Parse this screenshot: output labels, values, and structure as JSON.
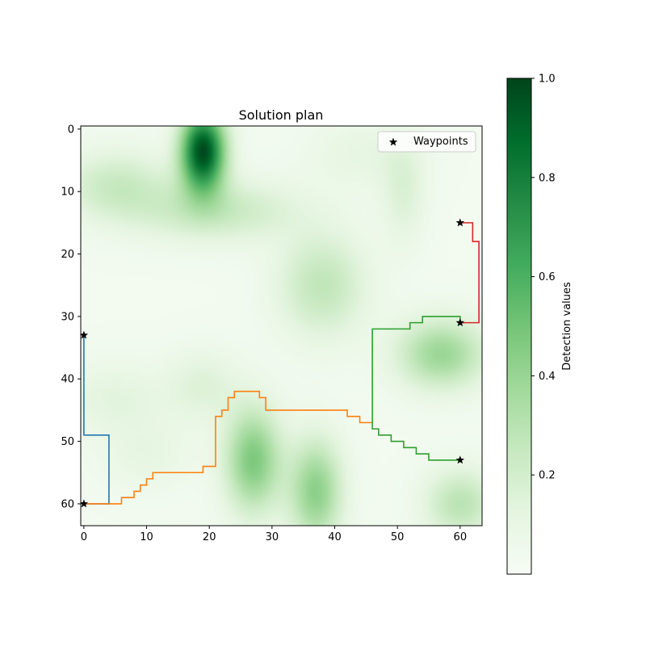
{
  "chart_data": {
    "type": "heatmap",
    "title": "Solution plan",
    "xlabel": "",
    "ylabel": "",
    "xlim": [
      -0.5,
      63.5
    ],
    "ylim": [
      63.5,
      -0.5
    ],
    "x_ticks": [
      0,
      10,
      20,
      30,
      40,
      50,
      60
    ],
    "y_ticks": [
      0,
      10,
      20,
      30,
      40,
      50,
      60
    ],
    "tick_labels_x": [
      "0",
      "10",
      "20",
      "30",
      "40",
      "50",
      "60"
    ],
    "tick_labels_y": [
      "0",
      "10",
      "20",
      "30",
      "40",
      "50",
      "60"
    ],
    "colormap": "Greens",
    "colorbar": {
      "label": "Detection values",
      "range": [
        0,
        1
      ],
      "ticks": [
        0.2,
        0.4,
        0.6,
        0.8,
        1.0
      ],
      "tick_labels": [
        "0.2",
        "0.4",
        "0.6",
        "0.8",
        "1.0"
      ]
    },
    "detection_field_blobs": [
      {
        "x": 19,
        "y": 3.5,
        "sx": 2.5,
        "sy": 4.5,
        "value": 0.95
      },
      {
        "x": 21,
        "y": 13,
        "sx": 9,
        "sy": 3.5,
        "value": 0.22
      },
      {
        "x": 5,
        "y": 9,
        "sx": 6,
        "sy": 4,
        "value": 0.2
      },
      {
        "x": 38,
        "y": 25,
        "sx": 5,
        "sy": 6,
        "value": 0.24
      },
      {
        "x": 57,
        "y": 36,
        "sx": 5,
        "sy": 4,
        "value": 0.36
      },
      {
        "x": 51,
        "y": 10,
        "sx": 2.5,
        "sy": 6,
        "value": 0.13
      },
      {
        "x": 27,
        "y": 53,
        "sx": 3.2,
        "sy": 6,
        "value": 0.44
      },
      {
        "x": 37,
        "y": 58,
        "sx": 3,
        "sy": 6,
        "value": 0.4
      },
      {
        "x": 19,
        "y": 41,
        "sx": 4,
        "sy": 4,
        "value": 0.12
      },
      {
        "x": 5,
        "y": 43,
        "sx": 6,
        "sy": 4,
        "value": 0.1
      },
      {
        "x": 60,
        "y": 60,
        "sx": 4,
        "sy": 4,
        "value": 0.26
      },
      {
        "x": 44,
        "y": 4,
        "sx": 6,
        "sy": 4,
        "value": 0.08
      },
      {
        "x": 10,
        "y": 52,
        "sx": 5,
        "sy": 4,
        "value": 0.08
      }
    ],
    "series": [
      {
        "color": "#1f77b4",
        "points": [
          [
            0,
            33
          ],
          [
            0,
            49
          ],
          [
            4,
            49
          ],
          [
            4,
            60
          ],
          [
            0,
            60
          ]
        ]
      },
      {
        "color": "#ff7f0e",
        "points": [
          [
            0,
            60
          ],
          [
            6,
            60
          ],
          [
            6,
            59
          ],
          [
            8,
            59
          ],
          [
            8,
            58
          ],
          [
            9,
            58
          ],
          [
            9,
            57
          ],
          [
            10,
            57
          ],
          [
            10,
            56
          ],
          [
            11,
            56
          ],
          [
            11,
            55
          ],
          [
            19,
            55
          ],
          [
            19,
            54
          ],
          [
            21,
            54
          ],
          [
            21,
            46
          ],
          [
            22,
            46
          ],
          [
            22,
            45
          ],
          [
            23,
            45
          ],
          [
            23,
            43
          ],
          [
            24,
            43
          ],
          [
            24,
            42
          ],
          [
            28,
            42
          ],
          [
            28,
            43
          ],
          [
            29,
            43
          ],
          [
            29,
            45
          ],
          [
            42,
            45
          ],
          [
            42,
            46
          ],
          [
            44,
            46
          ],
          [
            44,
            47
          ],
          [
            46,
            47
          ]
        ]
      },
      {
        "color": "#2ca02c",
        "points": [
          [
            60,
            53
          ],
          [
            55,
            53
          ],
          [
            55,
            52
          ],
          [
            53,
            52
          ],
          [
            53,
            51
          ],
          [
            51,
            51
          ],
          [
            51,
            50
          ],
          [
            49,
            50
          ],
          [
            49,
            49
          ],
          [
            47,
            49
          ],
          [
            47,
            48
          ],
          [
            46,
            48
          ],
          [
            46,
            32
          ],
          [
            52,
            32
          ],
          [
            52,
            31
          ],
          [
            54,
            31
          ],
          [
            54,
            30
          ],
          [
            60,
            30
          ],
          [
            60,
            31
          ]
        ]
      },
      {
        "color": "#d62728",
        "points": [
          [
            60,
            31
          ],
          [
            63,
            31
          ],
          [
            63,
            18
          ],
          [
            62,
            18
          ],
          [
            62,
            15
          ],
          [
            60,
            15
          ]
        ]
      }
    ],
    "waypoints": {
      "name": "Waypoints",
      "marker": "star",
      "points": [
        [
          0,
          33
        ],
        [
          0,
          60
        ],
        [
          60,
          53
        ],
        [
          60,
          31
        ],
        [
          60,
          15
        ]
      ]
    },
    "legend_position": "top-right"
  }
}
